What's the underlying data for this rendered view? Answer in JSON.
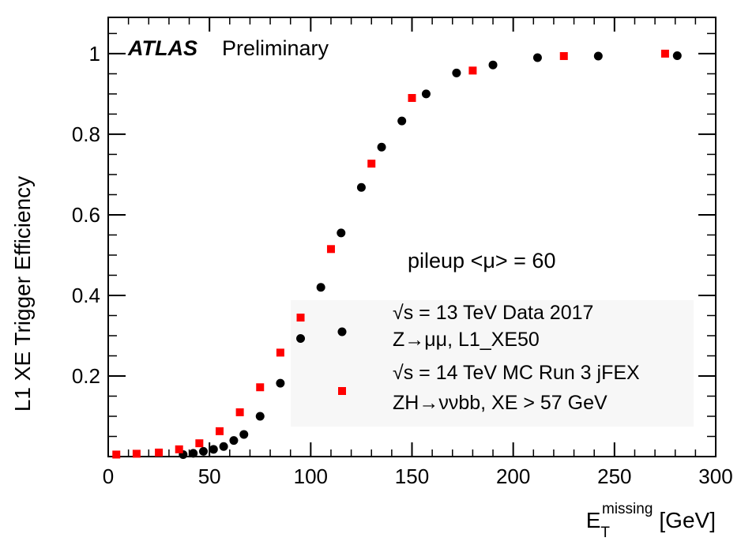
{
  "chart_data": {
    "type": "scatter",
    "title": "",
    "atlas_label": "ATLAS",
    "atlas_sublabel": "Preliminary",
    "annotation": "pileup <μ> = 60",
    "xlabel": {
      "main": "E",
      "sub": "T",
      "sup": "missing",
      "unit": "[GeV]"
    },
    "ylabel": "L1 XE Trigger Efficiency",
    "xlim": [
      0,
      300
    ],
    "ylim": [
      0,
      1.09
    ],
    "x_ticks": [
      0,
      50,
      100,
      150,
      200,
      250,
      300
    ],
    "x_tick_labels": [
      "0",
      "50",
      "100",
      "150",
      "200",
      "250",
      "300"
    ],
    "y_ticks": [
      0.2,
      0.4,
      0.6,
      0.8,
      1.0
    ],
    "y_tick_labels": [
      "0.2",
      "0.4",
      "0.6",
      "0.8",
      "1"
    ],
    "grid": false,
    "legend_placement": "lower-right",
    "series": [
      {
        "legend_lines": [
          "√s = 13 TeV Data 2017",
          "Z→μμ, L1_XE50"
        ],
        "color": "#000000",
        "marker": "circle",
        "x": [
          37,
          42,
          47,
          52,
          57,
          62,
          67,
          75,
          85,
          95,
          105,
          115,
          125,
          135,
          145,
          157,
          172,
          190,
          212,
          242,
          281
        ],
        "y": [
          0.005,
          0.008,
          0.013,
          0.018,
          0.025,
          0.04,
          0.055,
          0.1,
          0.182,
          0.293,
          0.42,
          0.555,
          0.668,
          0.768,
          0.833,
          0.9,
          0.952,
          0.972,
          0.99,
          0.994,
          0.995
        ]
      },
      {
        "legend_lines": [
          "√s = 14 TeV MC Run 3 jFEX",
          "ZH→ννbb, XE > 57 GeV"
        ],
        "color": "#ff0000",
        "marker": "square",
        "x": [
          4,
          14,
          25,
          35,
          45,
          55,
          65,
          75,
          85,
          95,
          110,
          130,
          150,
          180,
          225,
          275
        ],
        "y": [
          0.005,
          0.007,
          0.01,
          0.018,
          0.033,
          0.063,
          0.11,
          0.172,
          0.258,
          0.345,
          0.515,
          0.727,
          0.89,
          0.958,
          0.994,
          1.0
        ]
      }
    ]
  }
}
